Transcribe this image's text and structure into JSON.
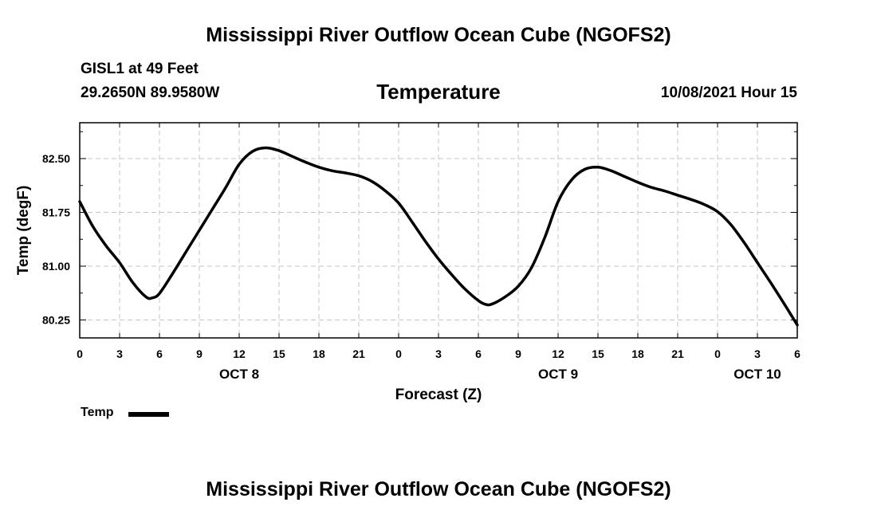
{
  "header": {
    "title": "Mississippi River Outflow Ocean Cube (NGOFS2)",
    "station": "GISL1 at 49 Feet",
    "coordinates": "29.2650N  89.9580W",
    "timestamp": "10/08/2021 Hour 15"
  },
  "footer": {
    "title": "Mississippi River Outflow Ocean Cube (NGOFS2)"
  },
  "legend": {
    "label": "Temp",
    "color": "#000000"
  },
  "chart_data": {
    "type": "line",
    "title": "Temperature",
    "xlabel": "Forecast (Z)",
    "ylabel": "Temp (degF)",
    "xlim": [
      0,
      54
    ],
    "ylim": [
      80.0,
      83.0
    ],
    "grid": true,
    "x_ticks": [
      0,
      3,
      6,
      9,
      12,
      15,
      18,
      21,
      24,
      27,
      30,
      33,
      36,
      39,
      42,
      45,
      48,
      51,
      54
    ],
    "x_tick_labels": [
      "0",
      "3",
      "6",
      "9",
      "12",
      "15",
      "18",
      "21",
      "0",
      "3",
      "6",
      "9",
      "12",
      "15",
      "18",
      "21",
      "0",
      "3",
      "6"
    ],
    "y_ticks": [
      80.25,
      81.0,
      81.75,
      82.5
    ],
    "y_tick_labels": [
      "80.25",
      "81.00",
      "81.75",
      "82.50"
    ],
    "day_labels": [
      {
        "x": 12,
        "label": "OCT 8"
      },
      {
        "x": 36,
        "label": "OCT 9"
      },
      {
        "x": 51,
        "label": "OCT 10"
      }
    ],
    "series": [
      {
        "name": "Temp",
        "x": [
          0,
          1,
          2,
          3,
          4,
          5,
          5.5,
          6,
          7,
          8,
          9,
          10,
          11,
          12,
          13,
          14,
          15,
          16,
          17,
          18,
          19,
          20,
          21,
          22,
          23,
          24,
          25,
          26,
          27,
          28,
          29,
          30,
          30.5,
          31,
          32,
          33,
          34,
          35,
          36,
          37,
          38,
          39,
          40,
          41,
          42,
          43,
          44,
          45,
          46,
          47,
          48,
          49,
          50,
          51,
          52,
          53,
          54
        ],
        "values": [
          81.9,
          81.55,
          81.28,
          81.05,
          80.77,
          80.57,
          80.56,
          80.62,
          80.9,
          81.2,
          81.5,
          81.8,
          82.1,
          82.42,
          82.6,
          82.65,
          82.61,
          82.53,
          82.45,
          82.38,
          82.33,
          82.3,
          82.26,
          82.18,
          82.05,
          81.88,
          81.62,
          81.35,
          81.1,
          80.88,
          80.68,
          80.52,
          80.47,
          80.47,
          80.57,
          80.72,
          80.98,
          81.4,
          81.9,
          82.2,
          82.35,
          82.38,
          82.33,
          82.25,
          82.17,
          82.1,
          82.05,
          81.99,
          81.93,
          81.86,
          81.76,
          81.58,
          81.33,
          81.05,
          80.77,
          80.48,
          80.18
        ]
      }
    ]
  }
}
